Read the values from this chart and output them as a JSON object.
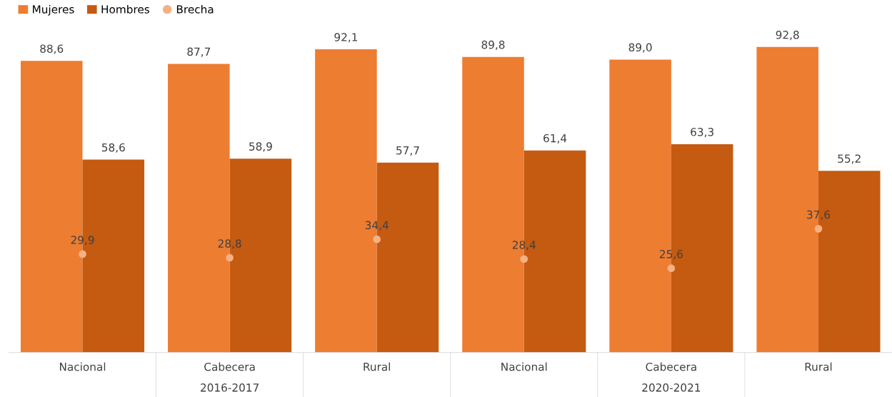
{
  "chart_data": {
    "type": "bar",
    "categories": [
      "Nacional",
      "Cabecera",
      "Rural",
      "Nacional",
      "Cabecera",
      "Rural"
    ],
    "series": [
      {
        "name": "Mujeres",
        "color": "#ed7d31",
        "values": [
          88.6,
          87.7,
          92.1,
          89.8,
          89.0,
          92.8
        ],
        "value_labels": [
          "88,6",
          "87,7",
          "92,1",
          "89,8",
          "89,0",
          "92,8"
        ]
      },
      {
        "name": "Hombres",
        "color": "#c55a11",
        "values": [
          58.6,
          58.9,
          57.7,
          61.4,
          63.3,
          55.2
        ],
        "value_labels": [
          "58,6",
          "58,9",
          "57,7",
          "61,4",
          "63,3",
          "55,2"
        ]
      },
      {
        "name": "Brecha",
        "type": "scatter",
        "color": "#f4b183",
        "values": [
          29.9,
          28.8,
          34.4,
          28.4,
          25.6,
          37.6
        ],
        "value_labels": [
          "29,9",
          "28,8",
          "34,4",
          "28,4",
          "25,6",
          "37,6"
        ]
      }
    ],
    "annotations": [
      "2016-2017",
      "2020-2021"
    ],
    "legend": "top left",
    "grid": false,
    "marker": "circle"
  }
}
